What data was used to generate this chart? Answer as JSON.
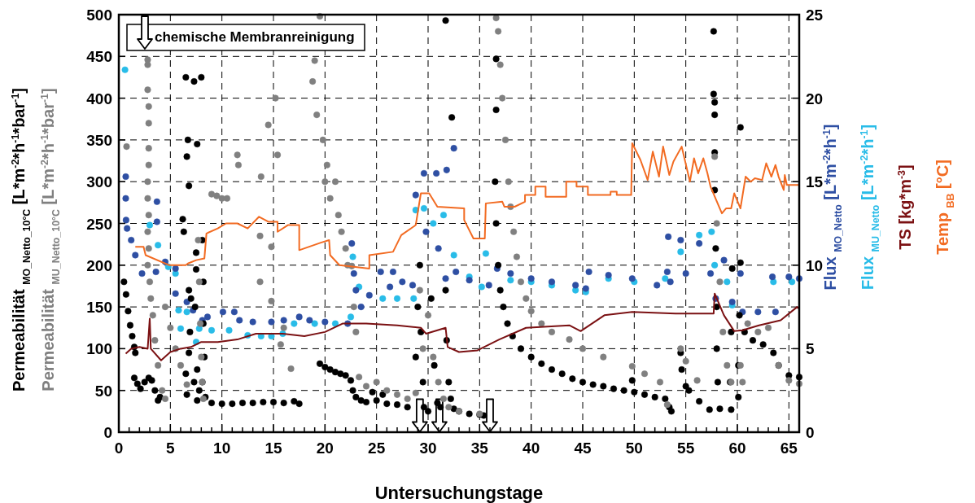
{
  "chart_data": {
    "type": "scatter",
    "xlabel": "Untersuchungstage",
    "xlim": [
      0,
      66
    ],
    "ylim": [
      0,
      500
    ],
    "y2lim": [
      0,
      25
    ],
    "xticks": [
      0,
      {
        "value": 1,
        "label": null
      },
      {
        "value": 2,
        "label": null
      },
      {
        "value": 3,
        "label": null
      },
      {
        "value": 4,
        "label": null
      },
      5,
      {
        "value": 6,
        "label": null
      },
      {
        "value": 7,
        "label": null
      },
      {
        "value": 8,
        "label": null
      },
      {
        "value": 9,
        "label": null
      },
      10,
      {
        "value": 11,
        "label": null
      },
      {
        "value": 12,
        "label": null
      },
      {
        "value": 13,
        "label": null
      },
      {
        "value": 14,
        "label": null
      },
      15,
      {
        "value": 16,
        "label": null
      },
      {
        "value": 17,
        "label": null
      },
      {
        "value": 18,
        "label": null
      },
      {
        "value": 19,
        "label": null
      },
      20,
      {
        "value": 21,
        "label": null
      },
      {
        "value": 22,
        "label": null
      },
      {
        "value": 23,
        "label": null
      },
      {
        "value": 24,
        "label": null
      },
      25,
      {
        "value": 26,
        "label": null
      },
      {
        "value": 27,
        "label": null
      },
      {
        "value": 28,
        "label": null
      },
      {
        "value": 29,
        "label": null
      },
      30,
      {
        "value": 31,
        "label": null
      },
      {
        "value": 32,
        "label": null
      },
      {
        "value": 33,
        "label": null
      },
      {
        "value": 34,
        "label": null
      },
      35,
      {
        "value": 36,
        "label": null
      },
      {
        "value": 37,
        "label": null
      },
      {
        "value": 38,
        "label": null
      },
      {
        "value": 39,
        "label": null
      },
      40,
      {
        "value": 41,
        "label": null
      },
      {
        "value": 42,
        "label": null
      },
      {
        "value": 43,
        "label": null
      },
      {
        "value": 44,
        "label": null
      },
      45,
      {
        "value": 46,
        "label": null
      },
      {
        "value": 47,
        "label": null
      },
      {
        "value": 48,
        "label": null
      },
      {
        "value": 49,
        "label": null
      },
      50,
      {
        "value": 51,
        "label": null
      },
      {
        "value": 52,
        "label": null
      },
      {
        "value": 53,
        "label": null
      },
      {
        "value": 54,
        "label": null
      },
      55,
      {
        "value": 56,
        "label": null
      },
      {
        "value": 57,
        "label": null
      },
      {
        "value": 58,
        "label": null
      },
      {
        "value": 59,
        "label": null
      },
      60,
      {
        "value": 61,
        "label": null
      },
      {
        "value": 62,
        "label": null
      },
      {
        "value": 63,
        "label": null
      },
      {
        "value": 64,
        "label": null
      },
      65,
      {
        "value": 66,
        "label": null
      }
    ],
    "yticks": [
      0,
      50,
      100,
      150,
      200,
      250,
      300,
      350,
      400,
      450,
      500
    ],
    "y2ticks": [
      0,
      5,
      10,
      15,
      20,
      25
    ],
    "grid": true,
    "legend": "top left",
    "series": [
      {
        "name": "Permeabilität $_{MU_Netto_10°C}$ [L*m$^{-2}$*h$^{-1}$*bar$^{-1}$]",
        "color": "#808080",
        "marker": "circle",
        "axis": "y",
        "x": [
          0.75,
          2.8,
          2.8,
          2.8,
          2.9,
          2.9,
          2.9,
          2.9,
          2.8,
          2.8,
          2.9,
          2.8,
          2.9,
          2.8,
          3.0,
          3.1,
          3.3,
          3.5,
          3.8,
          4.2,
          4.5,
          4.5,
          5,
          5.5,
          6,
          6.6,
          7.7,
          7.8,
          7.9,
          8,
          8.1,
          8.2,
          9,
          9.5,
          10,
          10.5,
          11.5,
          11.6,
          13.8,
          13.7,
          13.7,
          14.5,
          14.8,
          14.8,
          15.2,
          15.4,
          15.7,
          16,
          16.7,
          18.8,
          19,
          19.5,
          19.2,
          19.8,
          20,
          20.2,
          20.5,
          21,
          21.3,
          21.6,
          22,
          22.2,
          22.6,
          22.8,
          23,
          23.3,
          24,
          25,
          26,
          27,
          28,
          28.8,
          29.2,
          29.5,
          30,
          30.5,
          31,
          31.5,
          32,
          33,
          35,
          36.6,
          36.8,
          37,
          37.2,
          37.5,
          37.8,
          38,
          38.3,
          38.6,
          39,
          39.5,
          40,
          41,
          42,
          43.7,
          45,
          47,
          49.8,
          51,
          52.5,
          53.2,
          54.5,
          55,
          56.1,
          57.8,
          58,
          58.3,
          58.6,
          59,
          59.4,
          60.3,
          60.5,
          61,
          62,
          63,
          64,
          65,
          66
        ],
        "values": [
          342,
          446,
          440,
          410,
          390,
          370,
          340,
          320,
          300,
          280,
          260,
          240,
          220,
          200,
          180,
          160,
          140,
          110,
          80,
          50,
          40,
          150,
          125,
          100,
          80,
          57,
          230,
          180,
          130,
          90,
          60,
          40,
          285,
          283,
          280,
          280,
          332,
          320,
          306,
          235,
          180,
          368,
          222,
          157,
          400,
          332,
          105,
          125,
          76,
          420,
          445,
          498,
          380,
          350,
          300,
          320,
          280,
          300,
          260,
          240,
          220,
          200,
          199,
          150,
          120,
          66,
          55,
          60,
          50,
          45,
          40,
          47,
          170,
          100,
          140,
          90,
          60,
          40,
          30,
          25,
          22,
          496,
          480,
          440,
          400,
          350,
          300,
          270,
          240,
          210,
          180,
          160,
          145,
          130,
          120,
          111,
          100,
          90,
          79,
          70,
          60,
          33,
          100,
          85,
          62,
          330,
          250,
          180,
          120,
          80,
          60,
          80,
          60,
          130,
          120,
          125,
          80,
          62,
          58
        ]
      },
      {
        "name": "Permeabilität $_{MO_Netto_10°C}$ [L*m$^{-2}$*h$^{-1}$*bar$^{-1}$]",
        "color": "#000000",
        "marker": "circle",
        "axis": "y",
        "x": [
          0.5,
          0.7,
          0.9,
          1.1,
          1.3,
          1.5,
          1.6,
          1.5,
          1.8,
          2.1,
          2.5,
          2.9,
          3.2,
          3.5,
          3.8,
          4,
          6.2,
          6.3,
          6.5,
          6.7,
          6.6,
          6.8,
          7.3,
          7.6,
          8,
          7.5,
          7.5,
          6.8,
          7.0,
          7.4,
          6.9,
          6.8,
          7.6,
          6.5,
          7.3,
          7.8,
          6.6,
          8.1,
          8.2,
          8.2,
          8.3,
          8.1,
          8.4,
          7.6,
          9,
          10,
          11,
          12,
          13,
          14,
          15,
          16,
          17,
          17.5,
          19.5,
          20,
          20.5,
          21,
          21.5,
          22,
          22.5,
          22.7,
          23,
          23.5,
          24,
          24.6,
          25,
          25.6,
          26,
          27,
          28,
          28.8,
          29,
          29.2,
          29.3,
          29.5,
          29.6,
          30,
          30.3,
          30.6,
          30.9,
          31.2,
          31.7,
          31.7,
          31.8,
          32,
          32.3,
          32.2,
          32.5,
          33,
          34,
          35,
          35.4,
          36.6,
          36.6,
          36.5,
          36.6,
          36.8,
          37,
          37.3,
          37.7,
          38.2,
          39,
          40,
          41,
          42,
          43,
          44,
          45,
          46,
          47,
          48,
          49,
          49.8,
          50,
          51,
          52,
          53,
          53.4,
          53.6,
          54.5,
          54.6,
          55,
          55.3,
          56.3,
          57.3,
          57.7,
          57.7,
          57.8,
          57.8,
          57.8,
          57.8,
          57.9,
          58,
          58,
          58.1,
          58.3,
          59.5,
          59.4,
          59.3,
          59.4,
          60.3,
          60.3,
          60.2,
          60.1,
          60.1,
          60.7,
          61.5,
          62.5,
          63.5,
          64,
          65,
          66
        ],
        "values": [
          180,
          165,
          145,
          128,
          115,
          102,
          95,
          65,
          58,
          52,
          60,
          65,
          62,
          50,
          38,
          42,
          255,
          240,
          425,
          350,
          330,
          295,
          420,
          345,
          425,
          215,
          195,
          170,
          160,
          150,
          120,
          95,
          75,
          70,
          60,
          50,
          45,
          230,
          180,
          130,
          90,
          60,
          42,
          38,
          35,
          34,
          34,
          35,
          35,
          36,
          36,
          35,
          37,
          34,
          82,
          78,
          75,
          72,
          70,
          68,
          62,
          50,
          42,
          38,
          36,
          48,
          38,
          45,
          34,
          33,
          30,
          90,
          150,
          200,
          120,
          60,
          30,
          25,
          160,
          80,
          35,
          30,
          493,
          170,
          110,
          60,
          377,
          40,
          28,
          25,
          22,
          21,
          20,
          447,
          386,
          300,
          250,
          200,
          170,
          150,
          130,
          115,
          100,
          90,
          82,
          75,
          70,
          64,
          60,
          57,
          55,
          52,
          50,
          62,
          48,
          45,
          42,
          40,
          30,
          25,
          95,
          75,
          55,
          50,
          37,
          27,
          480,
          405,
          395,
          380,
          335,
          290,
          220,
          150,
          100,
          60,
          28,
          196,
          120,
          60,
          27,
          365,
          203,
          140,
          80,
          42,
          120,
          110,
          105,
          95,
          80,
          68,
          66
        ]
      },
      {
        "name": "Flux $_{MO_Netto}$ [L*m$^{-2}$*h$^{-1}$]",
        "color": "#2e4fa3",
        "marker": "circle",
        "axis": "y2",
        "x": [
          0.67,
          0.67,
          0.7,
          0.8,
          1.2,
          1.6,
          2.25,
          3.6,
          3.7,
          3.7,
          4.5,
          5.5,
          5.5,
          6.6,
          7.2,
          8.1,
          8.6,
          10.1,
          11.2,
          11.7,
          13,
          14.8,
          16,
          17.5,
          18.5,
          20,
          22.2,
          22.6,
          22.8,
          23,
          23.5,
          24.3,
          25.4,
          26.3,
          26.6,
          27.5,
          28.5,
          28.8,
          29.6,
          29.8,
          30.8,
          31,
          31.7,
          31.8,
          32.5,
          32.7,
          34,
          35.9,
          36.7,
          38,
          40,
          42,
          44.3,
          45.3,
          45.6,
          47.5,
          49.8,
          52.2,
          53.2,
          53.3,
          53.5,
          54.5,
          55,
          56.3,
          57.4,
          57.9,
          58.7,
          59.5,
          60.3,
          60.5,
          62,
          63.7,
          63.4,
          65,
          66
        ],
        "values": [
          15.3,
          14,
          12.7,
          12.2,
          11.5,
          10.6,
          9.5,
          9.6,
          13.8,
          12.6,
          10.2,
          9.8,
          8.3,
          7.8,
          7.3,
          6.7,
          6.9,
          7.2,
          7.2,
          6.7,
          6.6,
          6.6,
          6.7,
          6.9,
          6.7,
          6.6,
          6.5,
          11.3,
          9.5,
          8.5,
          7.5,
          8.2,
          9.6,
          8.7,
          9.6,
          9.0,
          8.8,
          14.2,
          15.5,
          12,
          15.5,
          11,
          9.2,
          15.7,
          17.0,
          9.6,
          9.1,
          8.8,
          9.8,
          9.5,
          9.2,
          9.0,
          8.8,
          8.6,
          9.6,
          9.4,
          9.2,
          8.8,
          9.6,
          11.7,
          9.0,
          11.5,
          9.5,
          11.3,
          9.5,
          8,
          10.3,
          7.8,
          9.5,
          7.2,
          7.2,
          7.2,
          9.3,
          9.3,
          9.2
        ]
      },
      {
        "name": "Flux $_{MU_Netto}$ [L*m$^{-2}$*h$^{-1}$]",
        "color": "#29bce8",
        "marker": "circle",
        "axis": "y2",
        "x": [
          0.6,
          3.0,
          3.8,
          4.8,
          5.5,
          5.8,
          6,
          6.6,
          7.5,
          7.8,
          9,
          10.7,
          12.5,
          13.8,
          14.8,
          15.9,
          17,
          19,
          21,
          22.5,
          22.7,
          23.3,
          25.6,
          27,
          28.6,
          28.8,
          29.6,
          30.5,
          31.5,
          32.5,
          34,
          35.2,
          35.6,
          38,
          40,
          42,
          44.3,
          45.3,
          47.5,
          50,
          53,
          54.5,
          56.3,
          57.5,
          57.8,
          59,
          59.5,
          63.5,
          65.3
        ],
        "values": [
          21.7,
          12.4,
          11.2,
          9.9,
          9.5,
          7.3,
          6.2,
          7.2,
          5.4,
          6.2,
          6.1,
          6.1,
          5.8,
          5.75,
          5.75,
          5.9,
          6.5,
          6.5,
          6.5,
          6.9,
          10.5,
          8.7,
          8.0,
          8.0,
          8.0,
          13.3,
          13.4,
          12.5,
          13,
          10.6,
          9.3,
          8.7,
          10.7,
          9.1,
          9.0,
          8.8,
          8.5,
          8.4,
          9.2,
          9.0,
          9.2,
          10.8,
          11.8,
          12.0,
          10.0,
          9.0,
          7.6,
          9.0,
          9.0
        ]
      },
      {
        "name": "TS [kg*m$^{-3}$]",
        "color": "#7b1113",
        "type": "line",
        "axis": "y2",
        "x": [
          0.67,
          1.2,
          2,
          2.8,
          3.0,
          3.1,
          4.1,
          5,
          6,
          7,
          8,
          9.6,
          11.5,
          13.3,
          15.9,
          18,
          20,
          21.7,
          24,
          27,
          29.3,
          29.8,
          31.7,
          31.9,
          33,
          34.8,
          36.9,
          39.5,
          43.7,
          44.8,
          47.1,
          49.8,
          54,
          57.7,
          57.8,
          58.7,
          59.7,
          60.5,
          62.1,
          64.2,
          65.8,
          66
        ],
        "values": [
          4.7,
          5.0,
          5.1,
          5.0,
          6.8,
          5.0,
          4.3,
          4.8,
          5.0,
          5.1,
          5.4,
          5.4,
          5.55,
          5.9,
          5.9,
          5.75,
          6.0,
          6.5,
          6.5,
          6.4,
          6.25,
          5.9,
          6.25,
          5.1,
          4.8,
          4.9,
          5.55,
          6.25,
          6.4,
          6.05,
          7.0,
          7.2,
          7.1,
          7.1,
          8.3,
          7.0,
          6.05,
          6.1,
          6.4,
          6.7,
          7.5,
          7.4
        ]
      },
      {
        "name": "Temp $_{BB}$ [°C]",
        "color": "#f26b22",
        "type": "line",
        "axis": "y2",
        "x": [
          1.6,
          2.4,
          2.6,
          4.9,
          6.5,
          6.7,
          7.5,
          8.3,
          8.5,
          9.6,
          10.4,
          11.5,
          12.5,
          13.6,
          14.5,
          15.4,
          15.4,
          16.4,
          17.5,
          17.5,
          19.6,
          20.4,
          20.5,
          21.4,
          24.3,
          24.3,
          26.6,
          27.4,
          28.8,
          29.3,
          30.1,
          30.9,
          33.5,
          33.5,
          34.4,
          35.5,
          35.6,
          37.2,
          37.4,
          38.4,
          39.4,
          39.4,
          40.4,
          40.4,
          41.4,
          41.4,
          43.4,
          43.4,
          44.4,
          44.4,
          45.5,
          45.5,
          47.7,
          47.7,
          48.3,
          48.3,
          49.7,
          49.8,
          50.6,
          51.3,
          51.8,
          52.4,
          52.8,
          53.4,
          53.8,
          54.6,
          55.4,
          55.8,
          56.2,
          56.7,
          57.1,
          57.4,
          58.5,
          58.9,
          59.4,
          59.7,
          60.3,
          60.8,
          61.3,
          61.7,
          62.4,
          62.8,
          63.3,
          63.7,
          64,
          64.5,
          64.6,
          64.8,
          66
        ],
        "values": [
          11.1,
          11.1,
          10.6,
          10.0,
          10.0,
          10.1,
          10.3,
          10.4,
          11.9,
          12.2,
          12.5,
          12.5,
          12.2,
          12.9,
          12.6,
          12.6,
          12.0,
          12.4,
          12.4,
          10.9,
          11.35,
          11.5,
          10.6,
          10.0,
          9.8,
          10.6,
          10.8,
          11.8,
          12.4,
          14.3,
          14.3,
          13.5,
          13.4,
          12.7,
          11.6,
          11.6,
          13.7,
          13.8,
          13.5,
          13.5,
          13.8,
          14.2,
          14.2,
          14.7,
          14.7,
          14.1,
          14.1,
          15.0,
          15.0,
          14.7,
          14.7,
          14.2,
          14.2,
          14.4,
          14.4,
          14.2,
          14.2,
          17.3,
          16.3,
          15.1,
          16.8,
          15.3,
          17.1,
          15.4,
          16.2,
          17.1,
          15.0,
          16.4,
          15.5,
          16.4,
          15.5,
          14.7,
          13.1,
          13.4,
          13.4,
          14.3,
          13.4,
          15.3,
          15.0,
          15.2,
          15.1,
          16.1,
          15.3,
          16.0,
          15.3,
          14.5,
          15.4,
          14.8,
          14.8
        ]
      },
      {
        "name": "chemische Membranreinigung",
        "color": "#ffffff",
        "marker": "triangle",
        "x": [
          29.2,
          31.1,
          36.0
        ],
        "values": [
          20,
          20,
          20
        ]
      }
    ]
  }
}
